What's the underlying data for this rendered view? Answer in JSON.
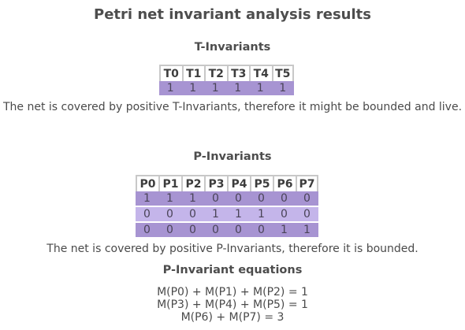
{
  "title": "Petri net invariant analysis results",
  "t_invariants": {
    "heading": "T-Invariants",
    "columns": [
      "T0",
      "T1",
      "T2",
      "T3",
      "T4",
      "T5"
    ],
    "rows": [
      [
        "1",
        "1",
        "1",
        "1",
        "1",
        "1"
      ]
    ],
    "note": "The net is covered by positive T-Invariants, therefore it might be bounded and live."
  },
  "p_invariants": {
    "heading": "P-Invariants",
    "columns": [
      "P0",
      "P1",
      "P2",
      "P3",
      "P4",
      "P5",
      "P6",
      "P7"
    ],
    "rows": [
      [
        "1",
        "1",
        "1",
        "0",
        "0",
        "0",
        "0",
        "0"
      ],
      [
        "0",
        "0",
        "0",
        "1",
        "1",
        "1",
        "0",
        "0"
      ],
      [
        "0",
        "0",
        "0",
        "0",
        "0",
        "0",
        "1",
        "1"
      ]
    ],
    "note": "The net is covered by positive P-Invariants, therefore it is bounded."
  },
  "p_equations": {
    "heading": "P-Invariant equations",
    "lines": [
      "M(P0) + M(P1) + M(P2) = 1",
      "M(P3) + M(P4) + M(P5) = 1",
      "M(P6) + M(P7) = 3"
    ]
  },
  "colors": {
    "row_dark": "#a794d2",
    "row_light": "#c4b5ea",
    "header_border": "#c8c8c8"
  }
}
